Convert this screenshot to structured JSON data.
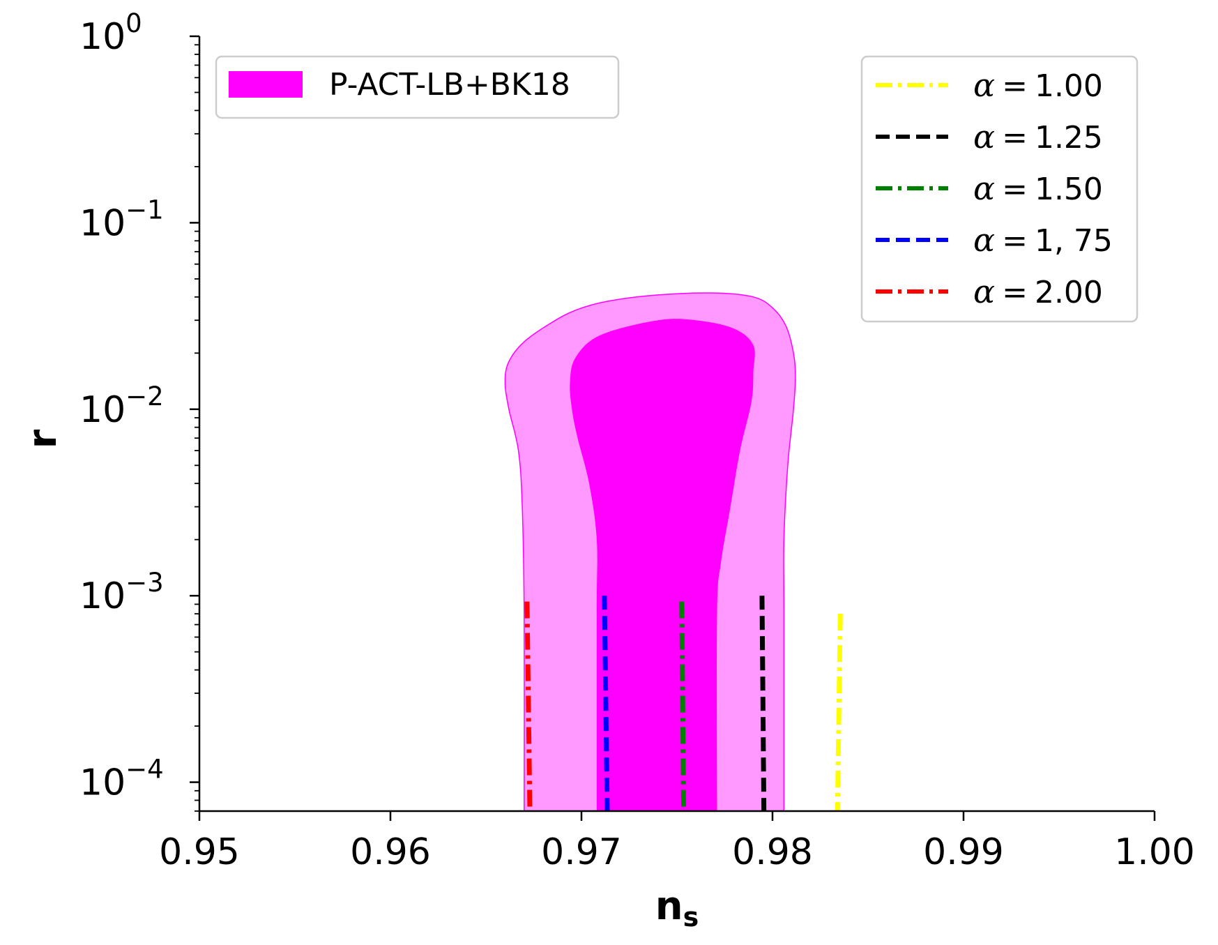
{
  "chart_data": {
    "type": "contour",
    "xlabel": "n",
    "xlabel_sub": "s",
    "ylabel": "r",
    "xlim": [
      0.95,
      1.0
    ],
    "ylim": [
      7e-05,
      1
    ],
    "yscale": "log",
    "x_ticks": [
      {
        "value": 0.95,
        "label": "0.95"
      },
      {
        "value": 0.96,
        "label": "0.96"
      },
      {
        "value": 0.97,
        "label": "0.97"
      },
      {
        "value": 0.98,
        "label": "0.98"
      },
      {
        "value": 0.99,
        "label": "0.99"
      },
      {
        "value": 1.0,
        "label": "1.00"
      }
    ],
    "y_ticks": [
      {
        "value": 1,
        "base": "10",
        "exp": "0"
      },
      {
        "value": 0.1,
        "base": "10",
        "exp": "−1"
      },
      {
        "value": 0.01,
        "base": "10",
        "exp": "−2"
      },
      {
        "value": 0.001,
        "base": "10",
        "exp": "−3"
      },
      {
        "value": 0.0001,
        "base": "10",
        "exp": "−4"
      }
    ],
    "contour": {
      "name": "P-ACT-LB+BK18",
      "color_inner": "#ff00ff",
      "color_outer": "#ff99ff",
      "outer_2sigma": [
        [
          0.967,
          7e-05
        ],
        [
          0.967,
          0.0008
        ],
        [
          0.9669,
          0.003
        ],
        [
          0.9667,
          0.006
        ],
        [
          0.9662,
          0.01
        ],
        [
          0.966,
          0.014
        ],
        [
          0.9662,
          0.018
        ],
        [
          0.967,
          0.023
        ],
        [
          0.9684,
          0.029
        ],
        [
          0.9697,
          0.034
        ],
        [
          0.9714,
          0.038
        ],
        [
          0.974,
          0.041
        ],
        [
          0.977,
          0.042
        ],
        [
          0.979,
          0.04
        ],
        [
          0.98,
          0.035
        ],
        [
          0.9807,
          0.028
        ],
        [
          0.9811,
          0.02
        ],
        [
          0.9812,
          0.015
        ],
        [
          0.9811,
          0.01
        ],
        [
          0.9808,
          0.005
        ],
        [
          0.9806,
          0.002
        ],
        [
          0.9806,
          0.0008
        ],
        [
          0.9806,
          7e-05
        ]
      ],
      "inner_1sigma": [
        [
          0.9708,
          7e-05
        ],
        [
          0.9708,
          0.0008
        ],
        [
          0.9708,
          0.002
        ],
        [
          0.9704,
          0.004
        ],
        [
          0.9698,
          0.007
        ],
        [
          0.9695,
          0.01
        ],
        [
          0.9694,
          0.014
        ],
        [
          0.9697,
          0.019
        ],
        [
          0.971,
          0.025
        ],
        [
          0.974,
          0.03
        ],
        [
          0.976,
          0.03
        ],
        [
          0.978,
          0.027
        ],
        [
          0.979,
          0.022
        ],
        [
          0.979,
          0.016
        ],
        [
          0.9789,
          0.011
        ],
        [
          0.9783,
          0.006
        ],
        [
          0.9778,
          0.003
        ],
        [
          0.9773,
          0.0015
        ],
        [
          0.9771,
          0.0008
        ],
        [
          0.9771,
          7e-05
        ]
      ]
    },
    "series": [
      {
        "name": "α = 1.00",
        "value": "1.00",
        "color": "#ffff00",
        "dash": "dashdot",
        "x": [
          0.98355,
          0.9834
        ],
        "y": [
          0.0008,
          7e-05
        ]
      },
      {
        "name": "α = 1.25",
        "value": "1.25",
        "color": "#000000",
        "dash": "dashed",
        "x": [
          0.97945,
          0.97955
        ],
        "y": [
          0.001,
          7e-05
        ]
      },
      {
        "name": "α = 1.50",
        "value": "1.50",
        "color": "#008000",
        "dash": "dashdot",
        "x": [
          0.97525,
          0.97535
        ],
        "y": [
          0.00093,
          7e-05
        ]
      },
      {
        "name": "α = 1, 75",
        "value": "1, 75",
        "color": "#0000ff",
        "dash": "dashed",
        "x": [
          0.9712,
          0.97135
        ],
        "y": [
          0.001,
          7e-05
        ]
      },
      {
        "name": "α = 2.00",
        "value": "2.00",
        "color": "#ff0000",
        "dash": "dashdot",
        "x": [
          0.96715,
          0.9673
        ],
        "y": [
          0.00093,
          7e-05
        ]
      }
    ],
    "legend_left": {
      "position": "top-left",
      "entries": [
        "P-ACT-LB+BK18"
      ]
    },
    "legend_right": {
      "position": "top-right",
      "prefix": "α"
    },
    "grid": false
  }
}
